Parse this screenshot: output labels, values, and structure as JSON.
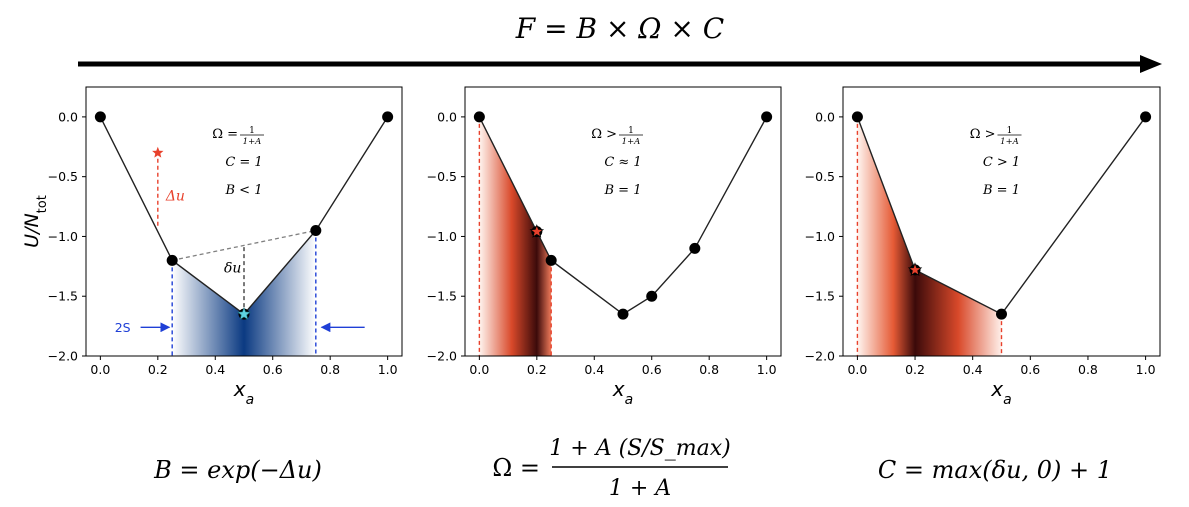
{
  "header": {
    "equation": "F = B × Ω × C"
  },
  "footer": {
    "b_formula": "B = exp(−Δu)",
    "omega_formula_num": "1 + A (S/S_max)",
    "omega_formula_lhs": "Ω =",
    "omega_formula_den": "1 + A",
    "c_formula": "C = max(δu, 0) + 1"
  },
  "colors": {
    "line": "#222222",
    "point": "#000000",
    "blue_dashed": "#1f3fd6",
    "blue_fill_dark": "#08306b",
    "red_dashed": "#e8412c",
    "red_fill_dark": "#3b0a0a",
    "red_fill_mid": "#c0391b",
    "gray_dashed": "#808080",
    "cyan_star": "#5fd3e0",
    "red_star": "#e8412c"
  },
  "chart_data": [
    {
      "type": "line",
      "panel": "left",
      "xlabel": "x_a",
      "ylabel": "U/N_tot",
      "xlim": [
        -0.05,
        1.05
      ],
      "ylim": [
        -2.0,
        0.25
      ],
      "xticks": [
        "0.0",
        "0.2",
        "0.4",
        "0.6",
        "0.8",
        "1.0"
      ],
      "yticks": [
        "0.0",
        "−0.5",
        "−1.0",
        "−1.5",
        "−2.0"
      ],
      "x": [
        0.0,
        0.25,
        0.5,
        0.75,
        1.0
      ],
      "y": [
        0.0,
        -1.2,
        -1.65,
        -0.95,
        0.0
      ],
      "annotations": {
        "lines": [
          "Ω = 1/(1+A)",
          "C = 1",
          "B < 1"
        ],
        "delta_u_label": "Δu",
        "small_delta_u_label": "δu",
        "two_s_label": "2S",
        "red_star": {
          "x": 0.2,
          "y": -0.3
        },
        "cyan_star": {
          "x": 0.5,
          "y": -1.65
        },
        "fill_range": [
          0.25,
          0.75
        ]
      }
    },
    {
      "type": "line",
      "panel": "middle",
      "xlabel": "x_a",
      "xlim": [
        -0.05,
        1.05
      ],
      "ylim": [
        -2.0,
        0.25
      ],
      "xticks": [
        "0.0",
        "0.2",
        "0.4",
        "0.6",
        "0.8",
        "1.0"
      ],
      "yticks": [
        "0.0",
        "−0.5",
        "−1.0",
        "−1.5",
        "−2.0"
      ],
      "x": [
        0.0,
        0.2,
        0.25,
        0.5,
        0.6,
        0.75,
        1.0
      ],
      "y": [
        0.0,
        -0.96,
        -1.2,
        -1.65,
        -1.5,
        -1.1,
        0.0
      ],
      "annotations": {
        "lines": [
          "Ω > 1/(1+A)",
          "C ≈ 1",
          "B = 1"
        ],
        "red_star": {
          "x": 0.2,
          "y": -0.96
        },
        "fill_range": [
          0.0,
          0.25
        ]
      }
    },
    {
      "type": "line",
      "panel": "right",
      "xlabel": "x_a",
      "xlim": [
        -0.05,
        1.05
      ],
      "ylim": [
        -2.0,
        0.25
      ],
      "xticks": [
        "0.0",
        "0.2",
        "0.4",
        "0.6",
        "0.8",
        "1.0"
      ],
      "yticks": [
        "0.0",
        "−0.5",
        "−1.0",
        "−1.5",
        "−2.0"
      ],
      "x": [
        0.0,
        0.2,
        0.5,
        1.0
      ],
      "y": [
        0.0,
        -1.28,
        -1.65,
        0.0
      ],
      "annotations": {
        "lines": [
          "Ω > 1/(1+A)",
          "C > 1",
          "B = 1"
        ],
        "red_star": {
          "x": 0.2,
          "y": -1.28
        },
        "fill_range": [
          0.0,
          0.5
        ]
      }
    }
  ]
}
